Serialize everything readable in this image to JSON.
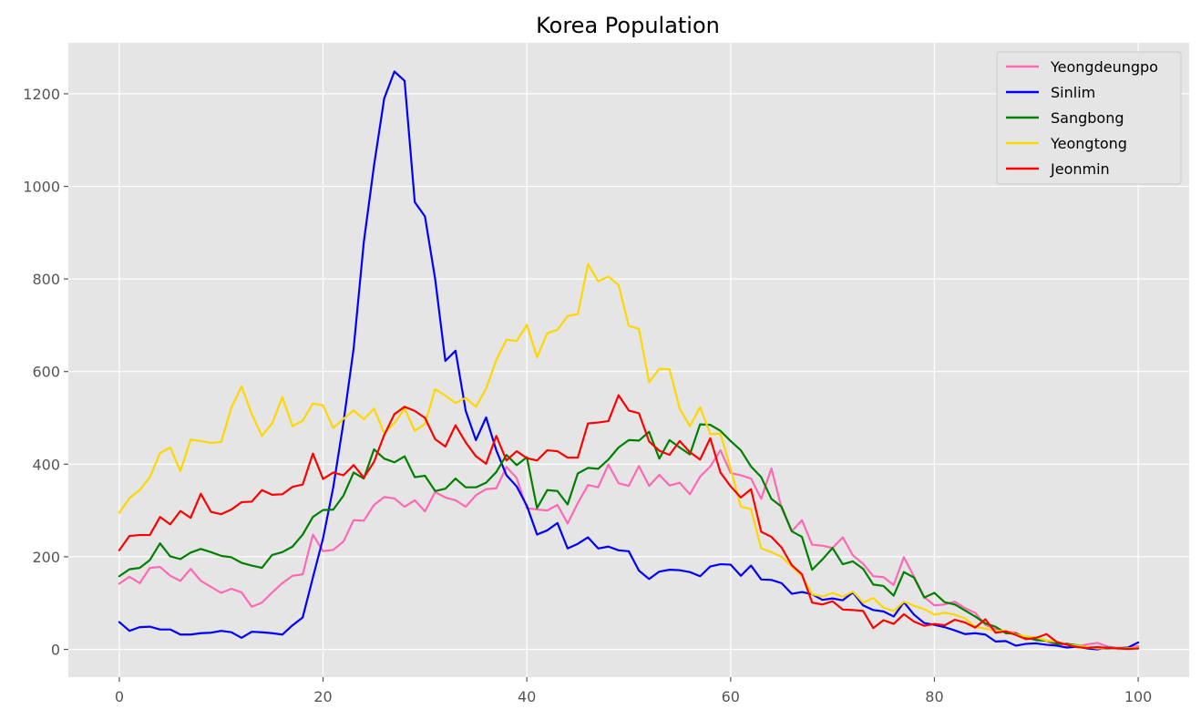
{
  "chart_data": {
    "type": "line",
    "title": "Korea Population",
    "xlabel": "",
    "ylabel": "",
    "xlim": [
      -5,
      105
    ],
    "ylim": [
      -60,
      1310
    ],
    "xticks": [
      0,
      20,
      40,
      60,
      80,
      100
    ],
    "yticks": [
      0,
      200,
      400,
      600,
      800,
      1000,
      1200
    ],
    "grid": true,
    "legend_position": "top-right",
    "x": [
      0,
      1,
      2,
      3,
      4,
      5,
      6,
      7,
      8,
      9,
      10,
      11,
      12,
      13,
      14,
      15,
      16,
      17,
      18,
      19,
      20,
      21,
      22,
      23,
      24,
      25,
      26,
      27,
      28,
      29,
      30,
      31,
      32,
      33,
      34,
      35,
      36,
      37,
      38,
      39,
      40,
      41,
      42,
      43,
      44,
      45,
      46,
      47,
      48,
      49,
      50,
      51,
      52,
      53,
      54,
      55,
      56,
      57,
      58,
      59,
      60,
      61,
      62,
      63,
      64,
      65,
      66,
      67,
      68,
      69,
      70,
      71,
      72,
      73,
      74,
      75,
      76,
      77,
      78,
      79,
      80,
      81,
      82,
      83,
      84,
      85,
      86,
      87,
      88,
      89,
      90,
      91,
      92,
      93,
      94,
      95,
      96,
      97,
      98,
      99,
      100
    ],
    "series": [
      {
        "name": "Yeongdeungpo",
        "color": "#ff69b4",
        "values": [
          142,
          157,
          143,
          176,
          178,
          159,
          148,
          174,
          148,
          135,
          122,
          131,
          123,
          92,
          101,
          123,
          143,
          159,
          162,
          248,
          212,
          215,
          233,
          279,
          278,
          312,
          329,
          326,
          308,
          322,
          298,
          340,
          328,
          322,
          308,
          333,
          346,
          348,
          394,
          370,
          305,
          302,
          300,
          312,
          272,
          316,
          355,
          350,
          399,
          359,
          353,
          396,
          353,
          377,
          354,
          360,
          335,
          373,
          395,
          430,
          381,
          376,
          369,
          325,
          391,
          305,
          255,
          279,
          226,
          224,
          219,
          242,
          203,
          185,
          158,
          156,
          139,
          199,
          157,
          113,
          95,
          97,
          103,
          89,
          79,
          53,
          44,
          39,
          36,
          24,
          21,
          18,
          9,
          13,
          6,
          11,
          14,
          6,
          3,
          4,
          7
        ]
      },
      {
        "name": "Sinlim",
        "color": "#0000ff",
        "values": [
          59,
          40,
          48,
          49,
          43,
          43,
          32,
          32,
          35,
          36,
          40,
          37,
          25,
          38,
          37,
          35,
          32,
          52,
          69,
          155,
          240,
          350,
          490,
          650,
          880,
          1045,
          1190,
          1248,
          1228,
          966,
          935,
          800,
          623,
          645,
          515,
          452,
          501,
          430,
          376,
          352,
          310,
          248,
          257,
          273,
          218,
          228,
          242,
          218,
          222,
          214,
          212,
          170,
          152,
          168,
          172,
          171,
          167,
          158,
          179,
          184,
          183,
          159,
          181,
          151,
          150,
          143,
          120,
          124,
          119,
          107,
          110,
          106,
          123,
          95,
          85,
          82,
          71,
          102,
          75,
          57,
          53,
          48,
          41,
          33,
          35,
          32,
          17,
          18,
          8,
          12,
          13,
          10,
          8,
          4,
          6,
          2,
          0,
          5,
          2,
          4,
          15
        ]
      },
      {
        "name": "Sangbong",
        "color": "#008000",
        "values": [
          158,
          173,
          176,
          193,
          229,
          201,
          195,
          209,
          217,
          210,
          202,
          199,
          187,
          181,
          176,
          204,
          210,
          222,
          248,
          286,
          301,
          302,
          332,
          382,
          369,
          432,
          412,
          404,
          417,
          372,
          375,
          342,
          347,
          369,
          350,
          350,
          360,
          383,
          420,
          398,
          415,
          305,
          344,
          342,
          313,
          380,
          392,
          390,
          410,
          436,
          452,
          451,
          470,
          412,
          452,
          436,
          421,
          486,
          485,
          472,
          450,
          430,
          395,
          372,
          325,
          308,
          255,
          243,
          172,
          194,
          219,
          184,
          190,
          174,
          140,
          137,
          116,
          167,
          155,
          112,
          122,
          102,
          97,
          84,
          71,
          56,
          49,
          35,
          34,
          26,
          20,
          19,
          12,
          12,
          9,
          5,
          3,
          2,
          3,
          3,
          2
        ]
      },
      {
        "name": "Yeongtong",
        "color": "#ffd700",
        "values": [
          295,
          327,
          344,
          372,
          424,
          436,
          385,
          453,
          450,
          446,
          448,
          522,
          568,
          508,
          461,
          488,
          545,
          482,
          494,
          531,
          527,
          478,
          498,
          516,
          497,
          520,
          467,
          489,
          520,
          472,
          487,
          562,
          548,
          532,
          543,
          524,
          563,
          625,
          669,
          666,
          701,
          631,
          683,
          690,
          720,
          724,
          832,
          795,
          805,
          787,
          699,
          692,
          577,
          606,
          605,
          520,
          482,
          523,
          465,
          466,
          390,
          308,
          303,
          218,
          210,
          200,
          179,
          158,
          119,
          114,
          122,
          114,
          125,
          101,
          111,
          90,
          83,
          103,
          94,
          87,
          75,
          79,
          75,
          67,
          49,
          45,
          40,
          40,
          32,
          28,
          26,
          19,
          17,
          10,
          8,
          5,
          2,
          4,
          2,
          2,
          4
        ]
      },
      {
        "name": "Jeonmin",
        "color": "#ff0000",
        "values": [
          214,
          245,
          247,
          247,
          286,
          270,
          299,
          284,
          336,
          297,
          292,
          302,
          318,
          319,
          344,
          334,
          335,
          351,
          356,
          423,
          368,
          382,
          376,
          398,
          371,
          405,
          463,
          508,
          524,
          515,
          500,
          454,
          438,
          484,
          447,
          417,
          401,
          461,
          408,
          428,
          413,
          408,
          430,
          428,
          414,
          414,
          488,
          490,
          493,
          549,
          516,
          510,
          449,
          429,
          420,
          450,
          426,
          410,
          456,
          382,
          352,
          328,
          346,
          254,
          243,
          220,
          182,
          162,
          101,
          97,
          104,
          86,
          85,
          83,
          46,
          63,
          55,
          76,
          60,
          51,
          55,
          52,
          64,
          58,
          47,
          65,
          36,
          39,
          31,
          22,
          25,
          33,
          16,
          10,
          5,
          3,
          5,
          3,
          2,
          1,
          2
        ]
      }
    ]
  }
}
